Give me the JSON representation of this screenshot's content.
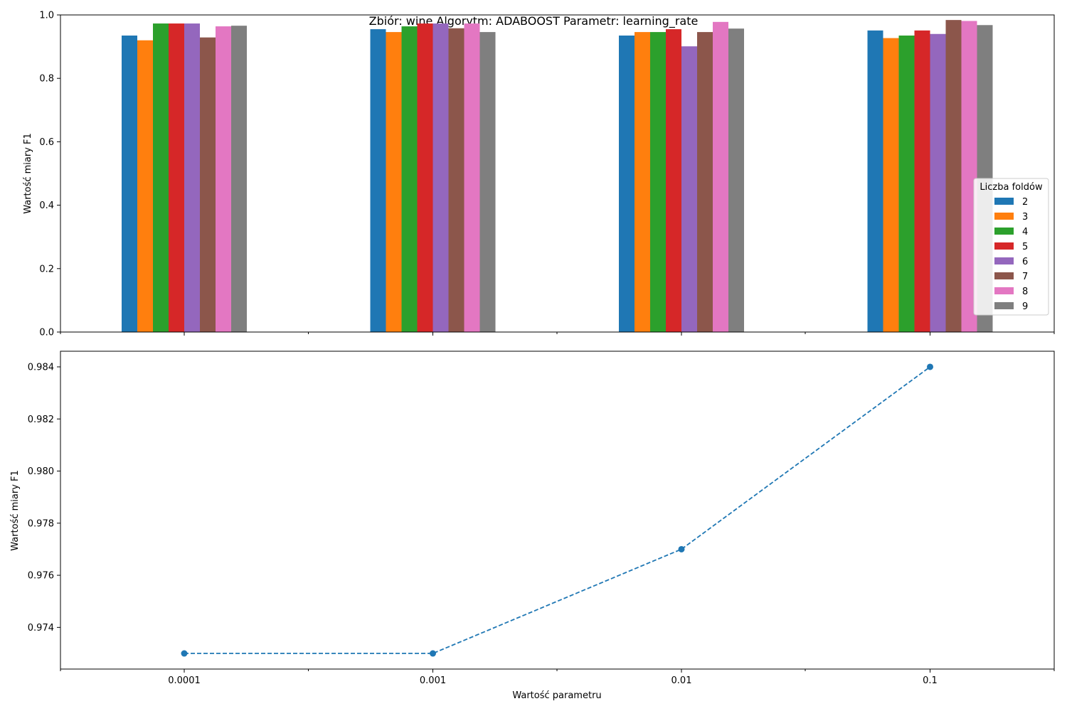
{
  "suptitle": "Zbiór: wine Algorytm: ADABOOST Parametr: learning_rate",
  "chart_data": [
    {
      "type": "bar",
      "ylabel": "Wartość miary F1",
      "xlabel": "",
      "ylim": [
        0.0,
        1.0
      ],
      "yticks": [
        "0.0",
        "0.2",
        "0.4",
        "0.6",
        "0.8",
        "1.0"
      ],
      "categories": [
        "0.0001",
        "0.001",
        "0.01",
        "0.1"
      ],
      "legend": {
        "title": "Liczba foldów",
        "placement": "center-right"
      },
      "series": [
        {
          "name": "2",
          "color": "#1f77b4",
          "values": [
            0.935,
            0.955,
            0.935,
            0.951
          ]
        },
        {
          "name": "3",
          "color": "#ff7f0e",
          "values": [
            0.92,
            0.946,
            0.946,
            0.927
          ]
        },
        {
          "name": "4",
          "color": "#2ca02c",
          "values": [
            0.973,
            0.964,
            0.946,
            0.935
          ]
        },
        {
          "name": "5",
          "color": "#d62728",
          "values": [
            0.973,
            0.973,
            0.955,
            0.951
          ]
        },
        {
          "name": "6",
          "color": "#9467bd",
          "values": [
            0.973,
            0.973,
            0.901,
            0.94
          ]
        },
        {
          "name": "7",
          "color": "#8c564b",
          "values": [
            0.929,
            0.958,
            0.946,
            0.984
          ]
        },
        {
          "name": "8",
          "color": "#e377c2",
          "values": [
            0.964,
            0.973,
            0.978,
            0.981
          ]
        },
        {
          "name": "9",
          "color": "#7f7f7f",
          "values": [
            0.966,
            0.946,
            0.957,
            0.968
          ]
        }
      ]
    },
    {
      "type": "line",
      "ylabel": "Wartość miary F1",
      "xlabel": "Wartość parametru",
      "x": [
        "0.0001",
        "0.001",
        "0.01",
        "0.1"
      ],
      "y": [
        0.973,
        0.973,
        0.977,
        0.984
      ],
      "ylim": [
        0.9724,
        0.9846
      ],
      "yticks": [
        "0.974",
        "0.976",
        "0.978",
        "0.980",
        "0.982",
        "0.984"
      ],
      "style": "dashed line with circle markers",
      "color": "#1f77b4",
      "grid": false
    }
  ]
}
